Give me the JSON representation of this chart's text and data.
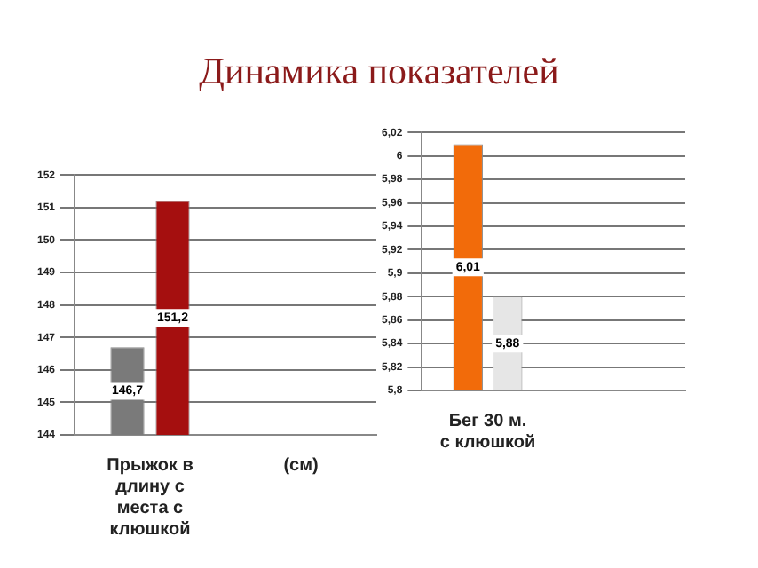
{
  "chart_data": [
    {
      "type": "bar",
      "title": "Динамика показателей",
      "categories": [
        "Прыжок в длину с места с клюшкой",
        "(см)"
      ],
      "series": [
        {
          "color": "#7a7a7a",
          "values": [
            146.7,
            null
          ],
          "value_labels": [
            "146,7",
            null
          ]
        },
        {
          "color": "#a50f0f",
          "values": [
            151.2,
            null
          ],
          "value_labels": [
            "151,2",
            null
          ]
        }
      ],
      "ylim": [
        144,
        152
      ],
      "yticks": [
        144,
        145,
        146,
        147,
        148,
        149,
        150,
        151,
        152
      ],
      "grid": "y",
      "legend": false
    },
    {
      "type": "bar",
      "categories": [
        "Бег 30 м. с клюшкой",
        null
      ],
      "series": [
        {
          "color": "#f26b0a",
          "values": [
            6.01,
            null
          ],
          "value_labels": [
            "6,01",
            null
          ]
        },
        {
          "color": "#e6e6e6",
          "values": [
            5.88,
            null
          ],
          "value_labels": [
            "5,88",
            null
          ]
        }
      ],
      "ylim": [
        5.8,
        6.02
      ],
      "yticks": [
        {
          "value": 5.8,
          "label": "5,8"
        },
        {
          "value": 5.82,
          "label": "5,82"
        },
        {
          "value": 5.84,
          "label": "5,84"
        },
        {
          "value": 5.86,
          "label": "5,86"
        },
        {
          "value": 5.88,
          "label": "5,88"
        },
        {
          "value": 5.9,
          "label": "5,9"
        },
        {
          "value": 5.92,
          "label": "5,92"
        },
        {
          "value": 5.94,
          "label": "5,94"
        },
        {
          "value": 5.96,
          "label": "5,96"
        },
        {
          "value": 5.98,
          "label": "5,98"
        },
        {
          "value": 6,
          "label": "6"
        },
        {
          "value": 6.02,
          "label": "6,02"
        }
      ],
      "grid": "y",
      "legend": false
    }
  ]
}
